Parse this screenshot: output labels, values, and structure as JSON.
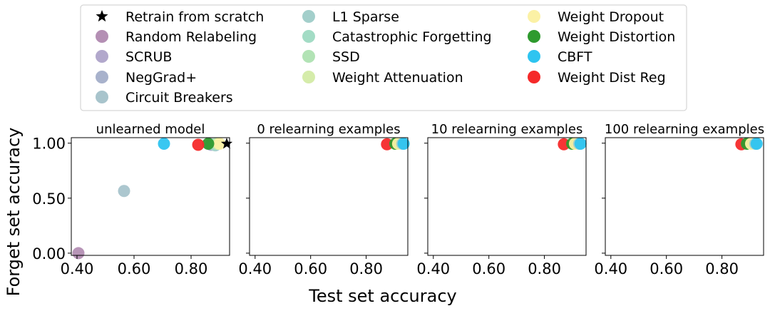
{
  "figure": {
    "xlabel": "Test set accuracy",
    "ylabel": "Forget set accuracy"
  },
  "legend": {
    "placement": "top-center",
    "entries": [
      {
        "label": "Retrain from scratch",
        "marker": "star",
        "color": "#000000"
      },
      {
        "label": "Random Relabeling",
        "marker": "circle",
        "color": "#b48fb4"
      },
      {
        "label": "SCRUB",
        "marker": "circle",
        "color": "#b2a8cc"
      },
      {
        "label": "NegGrad+",
        "marker": "circle",
        "color": "#a8b2cc"
      },
      {
        "label": "Circuit Breakers",
        "marker": "circle",
        "color": "#a8c4cc"
      },
      {
        "label": "L1 Sparse",
        "marker": "circle",
        "color": "#a3cfcb"
      },
      {
        "label": "Catastrophic Forgetting",
        "marker": "circle",
        "color": "#a3dcc5"
      },
      {
        "label": "SSD",
        "marker": "circle",
        "color": "#b2e3b5"
      },
      {
        "label": "Weight Attenuation",
        "marker": "circle",
        "color": "#d5ecaa"
      },
      {
        "label": "Weight Dropout",
        "marker": "circle",
        "color": "#fbf1a5"
      },
      {
        "label": "Weight Distortion",
        "marker": "circle",
        "color": "#2e9a2e"
      },
      {
        "label": "CBFT",
        "marker": "circle",
        "color": "#2ec4f0"
      },
      {
        "label": "Weight Dist Reg",
        "marker": "circle",
        "color": "#f52a2a"
      }
    ]
  },
  "chart_data": [
    {
      "type": "scatter",
      "title": "unlearned model",
      "xlim": [
        0.38,
        0.935
      ],
      "ylim": [
        -0.02,
        1.05
      ],
      "xticks": [
        "0.40",
        "0.60",
        "0.80"
      ],
      "yticks": [
        "0.00",
        "0.50",
        "1.00"
      ],
      "series": [
        {
          "name": "Random Relabeling",
          "x": [
            0.405
          ],
          "y": [
            0.0
          ]
        },
        {
          "name": "SCRUB",
          "x": [
            0.87
          ],
          "y": [
            0.99
          ]
        },
        {
          "name": "NegGrad+",
          "x": [
            0.87
          ],
          "y": [
            0.985
          ]
        },
        {
          "name": "Circuit Breakers",
          "x": [
            0.565
          ],
          "y": [
            0.565
          ]
        },
        {
          "name": "L1 Sparse",
          "x": [
            0.885
          ],
          "y": [
            0.98
          ]
        },
        {
          "name": "Catastrophic Forgetting",
          "x": [
            0.88
          ],
          "y": [
            0.99
          ]
        },
        {
          "name": "SSD",
          "x": [
            0.89
          ],
          "y": [
            0.995
          ]
        },
        {
          "name": "Weight Attenuation",
          "x": [
            0.895
          ],
          "y": [
            0.995
          ]
        },
        {
          "name": "Weight Dropout",
          "x": [
            0.9
          ],
          "y": [
            0.995
          ]
        },
        {
          "name": "Weight Distortion",
          "x": [
            0.86
          ],
          "y": [
            0.995
          ]
        },
        {
          "name": "CBFT",
          "x": [
            0.705
          ],
          "y": [
            0.995
          ]
        },
        {
          "name": "Weight Dist Reg",
          "x": [
            0.825
          ],
          "y": [
            0.985
          ]
        },
        {
          "name": "Retrain from scratch",
          "x": [
            0.925
          ],
          "y": [
            0.995
          ]
        }
      ]
    },
    {
      "type": "scatter",
      "title": "0 relearning examples",
      "xlim": [
        0.38,
        0.95
      ],
      "ylim": [
        -0.02,
        1.05
      ],
      "xticks": [
        "0.40",
        "0.60",
        "0.80"
      ],
      "yticks": [],
      "series": [
        {
          "name": "Weight Dist Reg",
          "x": [
            0.875
          ],
          "y": [
            0.99
          ]
        },
        {
          "name": "Weight Distortion",
          "x": [
            0.905
          ],
          "y": [
            0.995
          ]
        },
        {
          "name": "Weight Dropout",
          "x": [
            0.915
          ],
          "y": [
            0.995
          ]
        },
        {
          "name": "L1 Sparse",
          "x": [
            0.93
          ],
          "y": [
            0.995
          ]
        },
        {
          "name": "CBFT",
          "x": [
            0.935
          ],
          "y": [
            0.995
          ]
        }
      ]
    },
    {
      "type": "scatter",
      "title": "10 relearning examples",
      "xlim": [
        0.38,
        0.95
      ],
      "ylim": [
        -0.02,
        1.05
      ],
      "xticks": [
        "0.40",
        "0.60",
        "0.80"
      ],
      "yticks": [],
      "series": [
        {
          "name": "Weight Dist Reg",
          "x": [
            0.87
          ],
          "y": [
            0.99
          ]
        },
        {
          "name": "Weight Distortion",
          "x": [
            0.9
          ],
          "y": [
            0.995
          ]
        },
        {
          "name": "Weight Dropout",
          "x": [
            0.91
          ],
          "y": [
            0.995
          ]
        },
        {
          "name": "L1 Sparse",
          "x": [
            0.925
          ],
          "y": [
            0.995
          ]
        },
        {
          "name": "CBFT",
          "x": [
            0.93
          ],
          "y": [
            0.995
          ]
        }
      ]
    },
    {
      "type": "scatter",
      "title": "100 relearning examples",
      "xlim": [
        0.38,
        0.95
      ],
      "ylim": [
        -0.02,
        1.05
      ],
      "xticks": [
        "0.40",
        "0.60",
        "0.80"
      ],
      "yticks": [],
      "series": [
        {
          "name": "Weight Dist Reg",
          "x": [
            0.87
          ],
          "y": [
            0.99
          ]
        },
        {
          "name": "Weight Distortion",
          "x": [
            0.89
          ],
          "y": [
            0.995
          ]
        },
        {
          "name": "Weight Dropout",
          "x": [
            0.905
          ],
          "y": [
            0.995
          ]
        },
        {
          "name": "L1 Sparse",
          "x": [
            0.92
          ],
          "y": [
            0.995
          ]
        },
        {
          "name": "CBFT",
          "x": [
            0.925
          ],
          "y": [
            0.995
          ]
        }
      ]
    }
  ]
}
